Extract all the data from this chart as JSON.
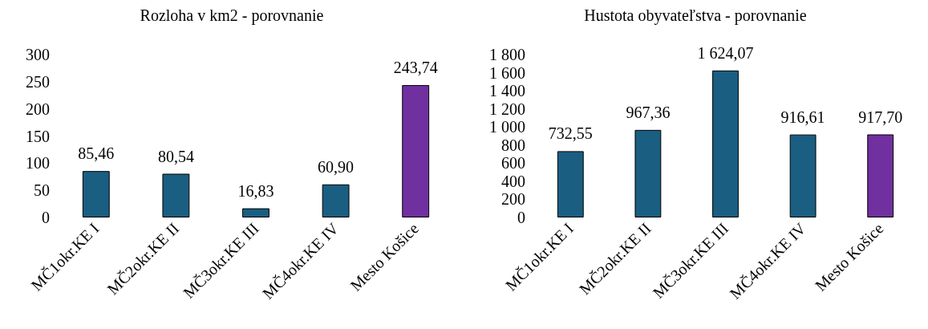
{
  "chart_data": [
    {
      "type": "bar",
      "title": "Rozloha v km2 - porovnanie",
      "categories": [
        "MČ1okr.KE I",
        "MČ2okr.KE II",
        "MČ3okr.KE III",
        "MČ4okr.KE IV",
        "Mesto Košice"
      ],
      "values": [
        85.46,
        80.54,
        16.83,
        60.9,
        243.74
      ],
      "colors": [
        "#1a5e82",
        "#1a5e82",
        "#1a5e82",
        "#1a5e82",
        "#7030a0"
      ],
      "value_labels": [
        "85,46",
        "80,54",
        "16,83",
        "60,90",
        "243,74"
      ],
      "ylim": [
        0,
        300
      ],
      "yticks": [
        0,
        50,
        100,
        150,
        200,
        250,
        300
      ],
      "grid": false
    },
    {
      "type": "bar",
      "title": "Hustota obyvateľstva - porovnanie",
      "categories": [
        "MČ1okr.KE I",
        "MČ2okr.KE II",
        "MČ3okr.KE III",
        "MČ4okr.KE IV",
        "Mesto Košice"
      ],
      "values": [
        732.55,
        967.36,
        1624.07,
        916.61,
        917.7
      ],
      "colors": [
        "#1a5e82",
        "#1a5e82",
        "#1a5e82",
        "#1a5e82",
        "#7030a0"
      ],
      "value_labels": [
        "732,55",
        "967,36",
        "1 624,07",
        "916,61",
        "917,70"
      ],
      "ylim": [
        0,
        1800
      ],
      "yticks": [
        0,
        {
          "value": 200,
          "label": "200"
        },
        {
          "value": 400,
          "label": "400"
        },
        {
          "value": 600,
          "label": "600"
        },
        {
          "value": 800,
          "label": "800"
        },
        {
          "value": 1000,
          "label": "1 000"
        },
        {
          "value": 1200,
          "label": "1 200"
        },
        {
          "value": 1400,
          "label": "1 400"
        },
        {
          "value": 1600,
          "label": "1 600"
        },
        {
          "value": 1800,
          "label": "1 800"
        }
      ],
      "grid": false
    }
  ]
}
